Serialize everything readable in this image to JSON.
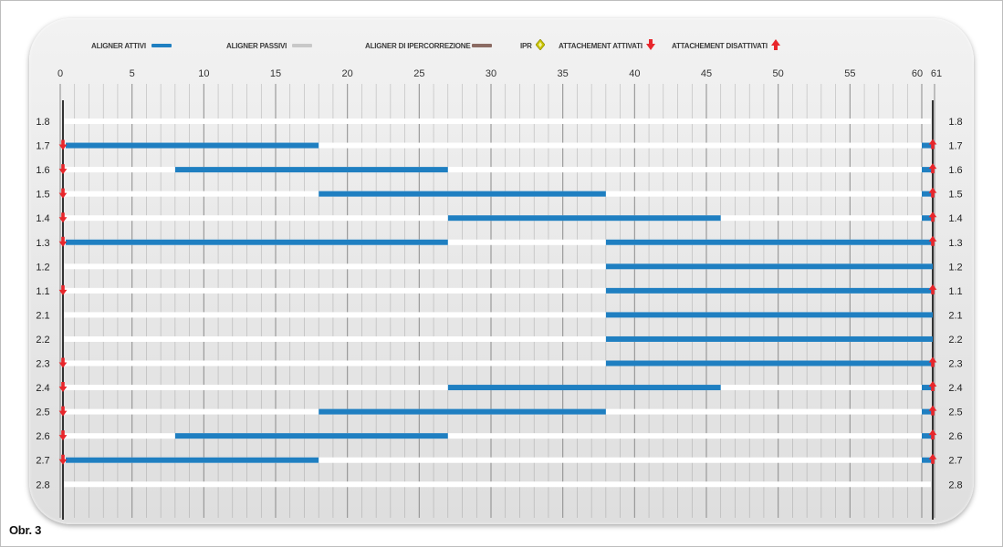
{
  "caption": "Obr. 3",
  "legend": {
    "active": "ALIGNER ATTIVI",
    "passive": "ALIGNER PASSIVI",
    "overcorrection": "ALIGNER DI IPERCORREZIONE",
    "ipr": "IPR",
    "attach_on": "ATTACHEMENT ATTIVATI",
    "attach_off": "ATTACHEMENT DISATTIVATI"
  },
  "colors": {
    "active": "#1f7fc1",
    "passive": "#c8c8c8",
    "overcorrection": "#8b6b63",
    "ipr": "#c9c400",
    "attach": "#e8262b",
    "grid": "#8a8a8a",
    "track": "#ffffff"
  },
  "chart_data": {
    "type": "gantt",
    "x_ticks": [
      "0",
      "5",
      "10",
      "15",
      "20",
      "25",
      "30",
      "35",
      "40",
      "45",
      "50",
      "55",
      "60",
      "61"
    ],
    "xlim": [
      0,
      61
    ],
    "rows": [
      "1.8",
      "1.7",
      "1.6",
      "1.5",
      "1.4",
      "1.3",
      "1.2",
      "1.1",
      "2.1",
      "2.2",
      "2.3",
      "2.4",
      "2.5",
      "2.6",
      "2.7",
      "2.8"
    ],
    "active_segments": [
      {
        "tooth": "1.7",
        "spans": [
          [
            0,
            18
          ],
          [
            60,
            61
          ]
        ]
      },
      {
        "tooth": "1.6",
        "spans": [
          [
            8,
            27
          ],
          [
            60,
            61
          ]
        ]
      },
      {
        "tooth": "1.5",
        "spans": [
          [
            18,
            38
          ],
          [
            60,
            61
          ]
        ]
      },
      {
        "tooth": "1.4",
        "spans": [
          [
            27,
            46
          ],
          [
            60,
            61
          ]
        ]
      },
      {
        "tooth": "1.3",
        "spans": [
          [
            0,
            27
          ],
          [
            38,
            61
          ]
        ]
      },
      {
        "tooth": "1.2",
        "spans": [
          [
            38,
            61
          ]
        ]
      },
      {
        "tooth": "1.1",
        "spans": [
          [
            38,
            61
          ]
        ]
      },
      {
        "tooth": "2.1",
        "spans": [
          [
            38,
            61
          ]
        ]
      },
      {
        "tooth": "2.2",
        "spans": [
          [
            38,
            61
          ]
        ]
      },
      {
        "tooth": "2.3",
        "spans": [
          [
            38,
            61
          ]
        ]
      },
      {
        "tooth": "2.4",
        "spans": [
          [
            27,
            46
          ],
          [
            60,
            61
          ]
        ]
      },
      {
        "tooth": "2.5",
        "spans": [
          [
            18,
            38
          ],
          [
            60,
            61
          ]
        ]
      },
      {
        "tooth": "2.6",
        "spans": [
          [
            8,
            27
          ],
          [
            60,
            61
          ]
        ]
      },
      {
        "tooth": "2.7",
        "spans": [
          [
            0,
            18
          ],
          [
            60,
            61
          ]
        ]
      }
    ],
    "attachments_activated": [
      {
        "tooth": "1.7",
        "x": 0
      },
      {
        "tooth": "1.6",
        "x": 0
      },
      {
        "tooth": "1.5",
        "x": 0
      },
      {
        "tooth": "1.4",
        "x": 0
      },
      {
        "tooth": "1.3",
        "x": 0
      },
      {
        "tooth": "1.1",
        "x": 0
      },
      {
        "tooth": "2.3",
        "x": 0
      },
      {
        "tooth": "2.4",
        "x": 0
      },
      {
        "tooth": "2.5",
        "x": 0
      },
      {
        "tooth": "2.6",
        "x": 0
      },
      {
        "tooth": "2.7",
        "x": 0
      }
    ],
    "attachments_deactivated": [
      {
        "tooth": "1.7",
        "x": 61
      },
      {
        "tooth": "1.6",
        "x": 61
      },
      {
        "tooth": "1.5",
        "x": 61
      },
      {
        "tooth": "1.4",
        "x": 61
      },
      {
        "tooth": "1.3",
        "x": 61
      },
      {
        "tooth": "1.1",
        "x": 61
      },
      {
        "tooth": "2.3",
        "x": 61
      },
      {
        "tooth": "2.4",
        "x": 61
      },
      {
        "tooth": "2.5",
        "x": 61
      },
      {
        "tooth": "2.6",
        "x": 61
      },
      {
        "tooth": "2.7",
        "x": 61
      }
    ],
    "grid": true,
    "legend_position": "top"
  }
}
